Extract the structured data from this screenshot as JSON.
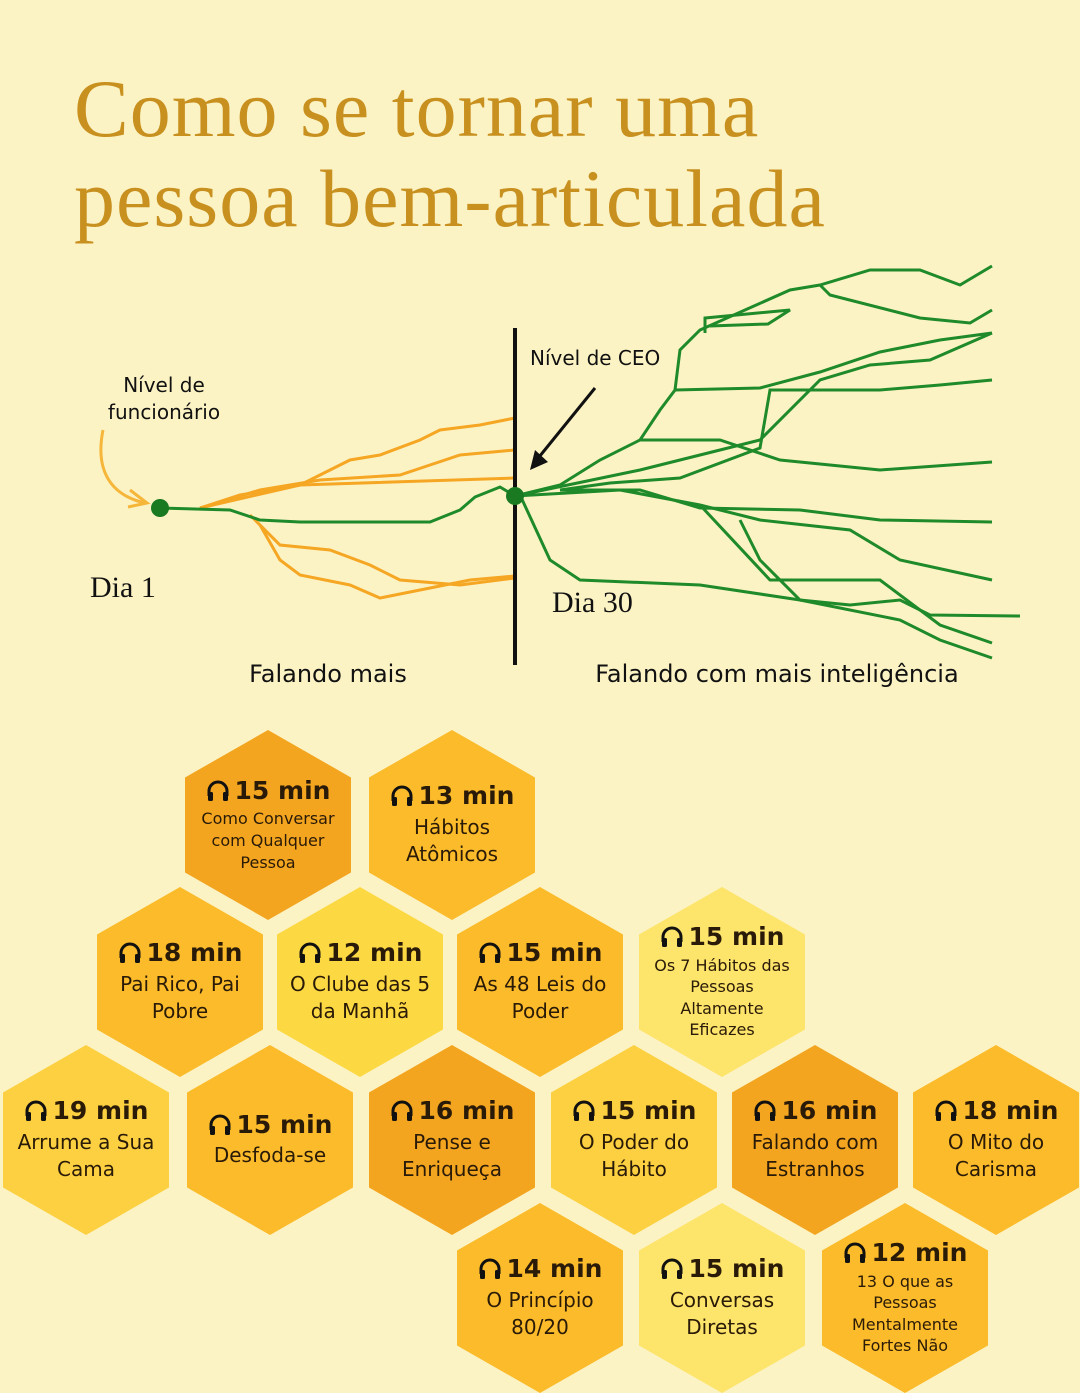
{
  "header": {
    "title_line1": "Como se tornar uma",
    "title_line2": "pessoa bem-articulada"
  },
  "diagram": {
    "start_label": "Nível de funcionário",
    "ceo_label": "Nível de CEO",
    "day_start": "Dia 1",
    "day_end": "Dia 30",
    "left_caption": "Falando mais",
    "right_caption": "Falando com mais inteligência"
  },
  "hexagons": [
    {
      "duration": "15 min",
      "title": "Como Conversar com Qualquer Pessoa",
      "color": "#f3a520"
    },
    {
      "duration": "13 min",
      "title": "Hábitos Atômicos",
      "color": "#fbbb2a"
    },
    {
      "duration": "18 min",
      "title": "Pai Rico, Pai Pobre",
      "color": "#fbbb2a"
    },
    {
      "duration": "12 min",
      "title": "O Clube das 5 da Manhã",
      "color": "#fcd843"
    },
    {
      "duration": "15 min",
      "title": "As 48 Leis do Poder",
      "color": "#fbbb2a"
    },
    {
      "duration": "15 min",
      "title": "Os 7 Hábitos das Pessoas Altamente Eficazes",
      "color": "#fde46a"
    },
    {
      "duration": "19 min",
      "title": "Arrume a Sua Cama",
      "color": "#fcd040"
    },
    {
      "duration": "15 min",
      "title": "Desfoda-se",
      "color": "#fbbb2a"
    },
    {
      "duration": "16 min",
      "title": "Pense e Enriqueça",
      "color": "#f3a520"
    },
    {
      "duration": "15 min",
      "title": "O Poder do Hábito",
      "color": "#fcd040"
    },
    {
      "duration": "16 min",
      "title": "Falando com Estranhos",
      "color": "#f3a520"
    },
    {
      "duration": "18 min",
      "title": "O Mito do Carisma",
      "color": "#fbbb2a"
    },
    {
      "duration": "14 min",
      "title": "O Princípio 80/20",
      "color": "#fbbb2a"
    },
    {
      "duration": "15 min",
      "title": "Conversas Diretas",
      "color": "#fde46a"
    },
    {
      "duration": "12 min",
      "title": "13 O que as Pessoas Mentalmente Fortes Não",
      "color": "#fbbb2a"
    }
  ]
}
